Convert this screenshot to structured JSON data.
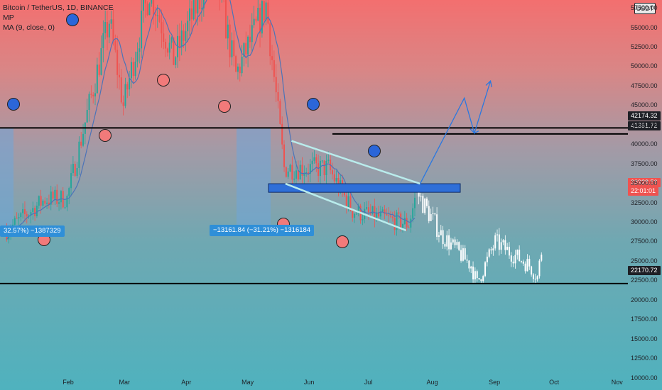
{
  "legend": {
    "title": "Bitcoin / TetherUS, 1D, BINANCE",
    "line2": "MP",
    "line3": "MA (9, close, 0)"
  },
  "currency_badge": "USDT",
  "measure_labels": {
    "left": "32.57%) −1387329",
    "right": "−13161.84 (−31.21%) −1316184"
  },
  "price_tags": {
    "level_top": "42174.32",
    "level_mid": "41391.72",
    "current_price": "33928.56",
    "countdown": "22:01:01",
    "level_bottom": "22170.72"
  },
  "colors": {
    "up_candle": "#26a69a",
    "down_candle": "#ef5350",
    "projection": "#ffffff",
    "arrow": "#2a78e0",
    "zone": "#2f6fd8",
    "channel": "#b9ecec",
    "circle_blue": "#2b66d9",
    "circle_red": "#f27a7a",
    "ma_line": "#4c74b8"
  },
  "chart_data": {
    "type": "candlestick",
    "symbol": "Bitcoin / TetherUS",
    "interval": "1D",
    "exchange": "BINANCE",
    "y_ticks": [
      57500,
      55000,
      52500,
      50000,
      47500,
      45000,
      42500,
      40000,
      37500,
      35000,
      32500,
      30000,
      27500,
      25000,
      22500,
      20000,
      17500,
      15000,
      12500,
      10000
    ],
    "y_tick_labels": [
      "57500.00",
      "55000.00",
      "52500.00",
      "50000.00",
      "47500.00",
      "45000.00",
      "42500.00",
      "40000.00",
      "37500.00",
      "35000.00",
      "32500.00",
      "30000.00",
      "27500.00",
      "25000.00",
      "22500.00",
      "20000.00",
      "17500.00",
      "15000.00",
      "12500.00",
      "10000.00"
    ],
    "ylim": [
      8500,
      58600
    ],
    "x_ticks": [
      "Feb",
      "Mar",
      "Apr",
      "May",
      "Jun",
      "Jul",
      "Aug",
      "Sep",
      "Oct",
      "Nov"
    ],
    "horizontal_levels": [
      42174.32,
      41391.72,
      22170.72
    ],
    "last_price": 33928.56,
    "monthly_path": [
      [
        "2021-01-01",
        29000
      ],
      [
        "2021-01-20",
        33000
      ],
      [
        "2021-01-31",
        33100
      ],
      [
        "2021-02-10",
        44000
      ],
      [
        "2021-02-21",
        56000
      ],
      [
        "2021-02-28",
        45000
      ],
      [
        "2021-03-13",
        60000
      ],
      [
        "2021-03-25",
        51000
      ],
      [
        "2021-04-14",
        63000
      ],
      [
        "2021-04-25",
        49000
      ],
      [
        "2021-05-10",
        58000
      ],
      [
        "2021-05-19",
        37000
      ],
      [
        "2021-06-10",
        37000
      ],
      [
        "2021-06-22",
        31500
      ],
      [
        "2021-07-20",
        29800
      ],
      [
        "2021-07-24",
        33900
      ]
    ],
    "projection_path": [
      [
        "2021-07-24",
        33900
      ],
      [
        "2021-08-05",
        28500
      ],
      [
        "2021-08-20",
        24500
      ],
      [
        "2021-08-23",
        22200
      ],
      [
        "2021-09-01",
        27500
      ],
      [
        "2021-09-18",
        24500
      ],
      [
        "2021-09-22",
        23000
      ],
      [
        "2021-09-25",
        28000
      ]
    ],
    "drawings": {
      "resistance_zone": [
        33900,
        35000
      ],
      "channel_upper": [
        [
          "2021-05-23",
          40500
        ],
        [
          "2021-07-26",
          35000
        ]
      ],
      "channel_lower": [
        [
          "2021-05-20",
          35000
        ],
        [
          "2021-07-19",
          29000
        ]
      ],
      "arrow_path": [
        [
          "2021-07-26",
          35000
        ],
        [
          "2021-08-17",
          46000
        ],
        [
          "2021-08-22",
          41500
        ],
        [
          "2021-08-30",
          48200
        ]
      ]
    }
  }
}
